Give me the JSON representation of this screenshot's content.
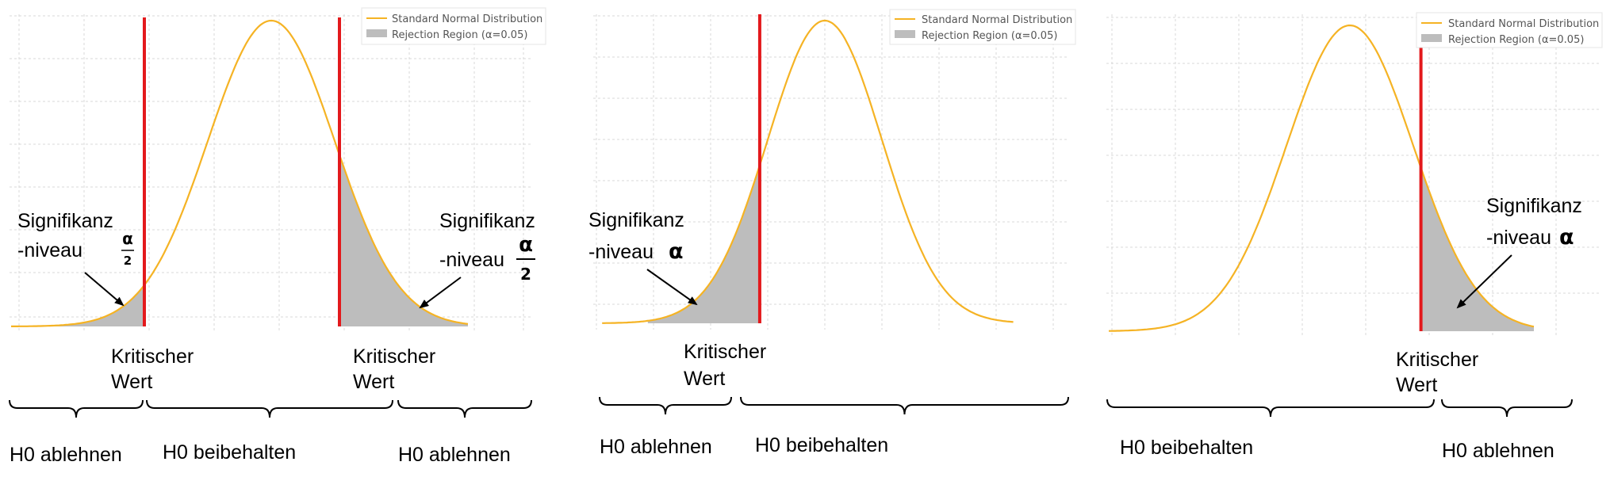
{
  "colors": {
    "curve": "#F5B324",
    "critical_line": "#E3191C",
    "rejection_fill": "#BDBDBD",
    "grid": "#D9D9D9",
    "text": "#000000"
  },
  "panels": [
    {
      "id": "two-sided",
      "legend": {
        "curve": "Standard Normal Distribution",
        "region": "Rejection Region (α=0.05)"
      },
      "significance": [
        {
          "line1": "Signifikanz",
          "line2": "-niveau",
          "symbol": "α",
          "denominator": "2"
        },
        {
          "line1": "Signifikanz",
          "line2": "-niveau",
          "symbol": "α",
          "denominator": "2"
        }
      ],
      "critical_labels": [
        {
          "line1": "Kritischer",
          "line2": "Wert"
        },
        {
          "line1": "Kritischer",
          "line2": "Wert"
        }
      ],
      "regions": [
        "H0 ablehnen",
        "H0 beibehalten",
        "H0 ablehnen"
      ]
    },
    {
      "id": "left-sided",
      "legend": {
        "curve": "Standard Normal Distribution",
        "region": "Rejection Region (α=0.05)"
      },
      "significance": [
        {
          "line1": "Signifikanz",
          "line2": "-niveau",
          "symbol": "α"
        }
      ],
      "critical_labels": [
        {
          "line1": "Kritischer",
          "line2": "Wert"
        }
      ],
      "regions": [
        "H0 ablehnen",
        "H0 beibehalten"
      ]
    },
    {
      "id": "right-sided",
      "legend": {
        "curve": "Standard Normal Distribution",
        "region": "Rejection Region (α=0.05)"
      },
      "significance": [
        {
          "line1": "Signifikanz",
          "line2": "-niveau",
          "symbol": "α"
        }
      ],
      "critical_labels": [
        {
          "line1": "Kritischer",
          "line2": "Wert"
        }
      ],
      "regions": [
        "H0 beibehalten",
        "H0 ablehnen"
      ]
    }
  ]
}
